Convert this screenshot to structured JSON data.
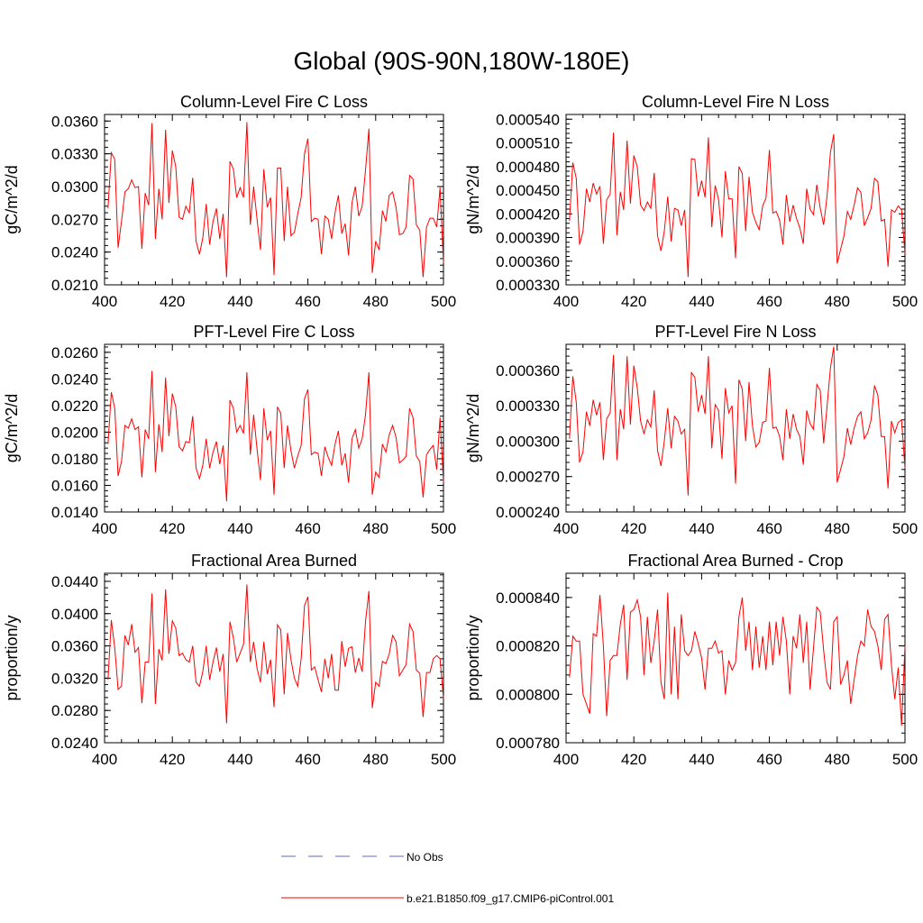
{
  "page": {
    "title": "Global (90S-90N,180W-180E)"
  },
  "legend": {
    "entries": [
      {
        "label": "No Obs",
        "style": "dashed",
        "color": "#5b6bc0"
      },
      {
        "label": "b.e21.B1850.f09_g17.CMIP6-piControl.001",
        "style": "solid",
        "color": "#ff0000"
      }
    ]
  },
  "chart_data": [
    {
      "type": "line",
      "title": "Column-Level Fire C Loss",
      "ylabel": "gC/m^2/d",
      "xlim": [
        400,
        500
      ],
      "ylim": [
        0.021,
        0.0366
      ],
      "xticks": [
        400,
        420,
        440,
        460,
        480,
        500
      ],
      "xtick_labels": [
        "400",
        "420",
        "440",
        "460",
        "480",
        "500"
      ],
      "yticks": [
        0.021,
        0.024,
        0.027,
        0.03,
        0.033,
        0.036
      ],
      "ytick_labels": [
        "0.0210",
        "0.0240",
        "0.0270",
        "0.0300",
        "0.0330",
        "0.0360"
      ],
      "series": [
        {
          "color": "#ff0000",
          "x_start": 401,
          "values": [
            0.028,
            0.0331,
            0.0325,
            0.0244,
            0.0268,
            0.0295,
            0.0298,
            0.0306,
            0.0299,
            0.03,
            0.0243,
            0.0294,
            0.0283,
            0.0358,
            0.0252,
            0.0298,
            0.027,
            0.0352,
            0.0285,
            0.0333,
            0.0318,
            0.0272,
            0.027,
            0.0282,
            0.0276,
            0.0308,
            0.025,
            0.0238,
            0.0253,
            0.0284,
            0.0247,
            0.0268,
            0.028,
            0.0252,
            0.0275,
            0.0217,
            0.0323,
            0.0316,
            0.029,
            0.0299,
            0.029,
            0.0359,
            0.0265,
            0.03,
            0.027,
            0.0242,
            0.0316,
            0.0281,
            0.029,
            0.0219,
            0.0317,
            0.0317,
            0.025,
            0.03,
            0.0255,
            0.0258,
            0.0275,
            0.029,
            0.033,
            0.0344,
            0.0268,
            0.0271,
            0.027,
            0.0238,
            0.0273,
            0.027,
            0.0252,
            0.0276,
            0.0292,
            0.0257,
            0.0266,
            0.0237,
            0.0285,
            0.03,
            0.0273,
            0.0282,
            0.0315,
            0.0353,
            0.0221,
            0.025,
            0.0242,
            0.0278,
            0.0268,
            0.0292,
            0.0295,
            0.0281,
            0.0256,
            0.0257,
            0.0263,
            0.031,
            0.0307,
            0.0265,
            0.026,
            0.0217,
            0.0263,
            0.0271,
            0.0271,
            0.0263,
            0.0299,
            0.023
          ]
        }
      ]
    },
    {
      "type": "line",
      "title": "Column-Level Fire N Loss",
      "ylabel": "gN/m^2/d",
      "xlim": [
        400,
        500
      ],
      "ylim": [
        0.00033,
        0.000546
      ],
      "xticks": [
        400,
        420,
        440,
        460,
        480,
        500
      ],
      "xtick_labels": [
        "400",
        "420",
        "440",
        "460",
        "480",
        "500"
      ],
      "yticks": [
        0.00033,
        0.00036,
        0.00039,
        0.00042,
        0.00045,
        0.00048,
        0.00051,
        0.00054
      ],
      "ytick_labels": [
        "0.000330",
        "0.000360",
        "0.000390",
        "0.000420",
        "0.000450",
        "0.000480",
        "0.000510",
        "0.000540"
      ],
      "series": [
        {
          "color": "#ff0000",
          "x_start": 401,
          "values": [
            0.000411,
            0.000485,
            0.000465,
            0.000381,
            0.000398,
            0.000452,
            0.000435,
            0.000459,
            0.000445,
            0.000455,
            0.000382,
            0.000438,
            0.000445,
            0.000523,
            0.000393,
            0.000448,
            0.000425,
            0.000513,
            0.000433,
            0.000494,
            0.00048,
            0.000431,
            0.000424,
            0.000435,
            0.000427,
            0.000472,
            0.000392,
            0.000373,
            0.000398,
            0.000442,
            0.000385,
            0.000427,
            0.000425,
            0.000405,
            0.000425,
            0.00034,
            0.00049,
            0.000489,
            0.000442,
            0.000462,
            0.000441,
            0.000517,
            0.000403,
            0.000456,
            0.000438,
            0.00039,
            0.000474,
            0.000439,
            0.000439,
            0.000364,
            0.00048,
            0.000471,
            0.000398,
            0.000467,
            0.000422,
            0.000409,
            0.0004,
            0.00043,
            0.00044,
            0.000501,
            0.000421,
            0.000423,
            0.000412,
            0.000381,
            0.000444,
            0.00041,
            0.000431,
            0.000414,
            0.000402,
            0.000382,
            0.000452,
            0.000426,
            0.000419,
            0.000457,
            0.000427,
            0.000406,
            0.000442,
            0.000498,
            0.000521,
            0.000357,
            0.000375,
            0.000392,
            0.000423,
            0.000413,
            0.000431,
            0.000453,
            0.000447,
            0.000405,
            0.000415,
            0.000427,
            0.000465,
            0.000461,
            0.000411,
            0.000413,
            0.000353,
            0.000425,
            0.000422,
            0.00043,
            0.000425,
            0.00037
          ]
        }
      ]
    },
    {
      "type": "line",
      "title": "PFT-Level Fire C Loss",
      "ylabel": "gC/m^2/d",
      "xlim": [
        400,
        500
      ],
      "ylim": [
        0.014,
        0.0266
      ],
      "xticks": [
        400,
        420,
        440,
        460,
        480,
        500
      ],
      "xtick_labels": [
        "400",
        "420",
        "440",
        "460",
        "480",
        "500"
      ],
      "yticks": [
        0.014,
        0.016,
        0.018,
        0.02,
        0.022,
        0.024,
        0.026
      ],
      "ytick_labels": [
        "0.0140",
        "0.0160",
        "0.0180",
        "0.0200",
        "0.0220",
        "0.0240",
        "0.0260"
      ],
      "series": [
        {
          "color": "#ff0000",
          "x_start": 401,
          "values": [
            0.0191,
            0.023,
            0.0218,
            0.0167,
            0.0178,
            0.0205,
            0.0203,
            0.021,
            0.0202,
            0.0204,
            0.0166,
            0.0202,
            0.0195,
            0.0246,
            0.017,
            0.0206,
            0.0185,
            0.0241,
            0.0197,
            0.0229,
            0.0219,
            0.0189,
            0.0186,
            0.0193,
            0.0192,
            0.0212,
            0.0173,
            0.0165,
            0.0175,
            0.0195,
            0.0173,
            0.0185,
            0.0193,
            0.0176,
            0.019,
            0.0148,
            0.0224,
            0.0218,
            0.02,
            0.0205,
            0.0199,
            0.0245,
            0.0183,
            0.0213,
            0.0187,
            0.0164,
            0.0218,
            0.0194,
            0.0201,
            0.0153,
            0.0219,
            0.0214,
            0.0173,
            0.0205,
            0.0186,
            0.0173,
            0.0182,
            0.019,
            0.0225,
            0.0232,
            0.0183,
            0.0185,
            0.0184,
            0.0167,
            0.0189,
            0.0181,
            0.0175,
            0.0191,
            0.0201,
            0.0175,
            0.0184,
            0.0162,
            0.0195,
            0.0202,
            0.0188,
            0.0195,
            0.0213,
            0.0245,
            0.0153,
            0.017,
            0.0166,
            0.0191,
            0.0185,
            0.0198,
            0.0205,
            0.0196,
            0.0177,
            0.0179,
            0.0182,
            0.0218,
            0.0211,
            0.0182,
            0.0178,
            0.0151,
            0.0183,
            0.0187,
            0.019,
            0.0172,
            0.0211,
            0.0162
          ]
        }
      ]
    },
    {
      "type": "line",
      "title": "PFT-Level Fire N Loss",
      "ylabel": "gN/m^2/d",
      "xlim": [
        400,
        500
      ],
      "ylim": [
        0.00024,
        0.000382
      ],
      "xticks": [
        400,
        420,
        440,
        460,
        480,
        500
      ],
      "xtick_labels": [
        "400",
        "420",
        "440",
        "460",
        "480",
        "500"
      ],
      "yticks": [
        0.00024,
        0.00027,
        0.0003,
        0.00033,
        0.00036
      ],
      "ytick_labels": [
        "0.000240",
        "0.000270",
        "0.000300",
        "0.000330",
        "0.000360"
      ],
      "series": [
        {
          "color": "#ff0000",
          "x_start": 401,
          "values": [
            0.000302,
            0.000355,
            0.000333,
            0.000282,
            0.000291,
            0.000325,
            0.000313,
            0.000335,
            0.000322,
            0.000333,
            0.000284,
            0.000319,
            0.000324,
            0.000373,
            0.000284,
            0.000327,
            0.00031,
            0.000372,
            0.000314,
            0.000364,
            0.000345,
            0.000317,
            0.000306,
            0.000318,
            0.000312,
            0.000343,
            0.000292,
            0.000279,
            0.0003,
            0.000328,
            0.000294,
            0.000321,
            0.000317,
            0.000306,
            0.00031,
            0.000254,
            0.000358,
            0.000354,
            0.000325,
            0.000339,
            0.000323,
            0.000372,
            0.000294,
            0.000331,
            0.000326,
            0.000285,
            0.000345,
            0.000324,
            0.00033,
            0.000264,
            0.000352,
            0.000344,
            0.0003,
            0.00035,
            0.000313,
            0.000295,
            0.000299,
            0.000316,
            0.000317,
            0.000362,
            0.000311,
            0.000312,
            0.000304,
            0.000284,
            0.000327,
            0.000302,
            0.000323,
            0.00031,
            0.000304,
            0.00028,
            0.000326,
            0.000315,
            0.00031,
            0.000348,
            0.000343,
            0.000298,
            0.000329,
            0.000362,
            0.00038,
            0.000265,
            0.000276,
            0.000287,
            0.000311,
            0.000297,
            0.000311,
            0.000321,
            0.000325,
            0.000302,
            0.000307,
            0.000318,
            0.000347,
            0.000339,
            0.000304,
            0.000304,
            0.00026,
            0.000317,
            0.000307,
            0.000316,
            0.000318,
            0.000277
          ]
        }
      ]
    },
    {
      "type": "line",
      "title": "Fractional Area Burned",
      "ylabel": "proportion/y",
      "xlim": [
        400,
        500
      ],
      "ylim": [
        0.024,
        0.045
      ],
      "xticks": [
        400,
        420,
        440,
        460,
        480,
        500
      ],
      "xtick_labels": [
        "400",
        "420",
        "440",
        "460",
        "480",
        "500"
      ],
      "yticks": [
        0.024,
        0.028,
        0.032,
        0.036,
        0.04,
        0.044
      ],
      "ytick_labels": [
        "0.0240",
        "0.0280",
        "0.0320",
        "0.0360",
        "0.0400",
        "0.0440"
      ],
      "series": [
        {
          "color": "#ff0000",
          "x_start": 401,
          "values": [
            0.0318,
            0.0392,
            0.0358,
            0.0306,
            0.031,
            0.0373,
            0.0361,
            0.0387,
            0.0352,
            0.0358,
            0.0289,
            0.034,
            0.034,
            0.0425,
            0.0288,
            0.0356,
            0.0342,
            0.043,
            0.035,
            0.0391,
            0.0382,
            0.0348,
            0.0351,
            0.0343,
            0.034,
            0.036,
            0.0315,
            0.031,
            0.0328,
            0.036,
            0.0318,
            0.034,
            0.0358,
            0.0328,
            0.035,
            0.0264,
            0.039,
            0.037,
            0.034,
            0.0351,
            0.0362,
            0.0436,
            0.034,
            0.0365,
            0.0332,
            0.0315,
            0.0365,
            0.0325,
            0.0343,
            0.0284,
            0.0386,
            0.038,
            0.03,
            0.0376,
            0.0343,
            0.032,
            0.031,
            0.0344,
            0.041,
            0.0421,
            0.033,
            0.0334,
            0.0318,
            0.0303,
            0.0344,
            0.032,
            0.035,
            0.0305,
            0.0305,
            0.0366,
            0.0334,
            0.0357,
            0.0359,
            0.0327,
            0.0345,
            0.0328,
            0.039,
            0.0428,
            0.0283,
            0.0315,
            0.031,
            0.0341,
            0.0338,
            0.035,
            0.0373,
            0.0365,
            0.0323,
            0.033,
            0.0337,
            0.0387,
            0.0378,
            0.033,
            0.0326,
            0.0272,
            0.0327,
            0.0327,
            0.0344,
            0.0348,
            0.0344,
            0.0295
          ]
        }
      ]
    },
    {
      "type": "line",
      "title": "Fractional Area Burned - Crop",
      "ylabel": "proportion/y",
      "xlim": [
        400,
        500
      ],
      "ylim": [
        0.00078,
        0.00085
      ],
      "xticks": [
        400,
        420,
        440,
        460,
        480,
        500
      ],
      "xtick_labels": [
        "400",
        "420",
        "440",
        "460",
        "480",
        "500"
      ],
      "yticks": [
        0.00078,
        0.0008,
        0.00082,
        0.00084
      ],
      "ytick_labels": [
        "0.000780",
        "0.000800",
        "0.000820",
        "0.000840"
      ],
      "series": [
        {
          "color": "#ff0000",
          "x_start": 401,
          "values": [
            0.000807,
            0.000824,
            0.000822,
            0.000822,
            0.0008,
            0.000796,
            0.000792,
            0.000825,
            0.000824,
            0.000841,
            0.00082,
            0.000791,
            0.000814,
            0.000816,
            0.000816,
            0.000829,
            0.000837,
            0.000806,
            0.000834,
            0.000835,
            0.000839,
            0.000832,
            0.000808,
            0.000832,
            0.000813,
            0.000822,
            0.000835,
            0.000805,
            0.000798,
            0.000842,
            0.0008,
            0.000828,
            0.000798,
            0.000833,
            0.000818,
            0.000816,
            0.000818,
            0.000826,
            0.000821,
            0.000815,
            0.000802,
            0.000819,
            0.000819,
            0.000822,
            0.000817,
            0.000818,
            0.0008,
            0.000814,
            0.00081,
            0.000813,
            0.000832,
            0.00084,
            0.000818,
            0.00083,
            0.00081,
            0.000828,
            0.000811,
            0.000824,
            0.00081,
            0.00083,
            0.000812,
            0.00083,
            0.000816,
            0.000832,
            0.000822,
            0.0008,
            0.000824,
            0.000819,
            0.000833,
            0.000813,
            0.00083,
            0.000802,
            0.000819,
            0.000836,
            0.000834,
            0.000818,
            0.000805,
            0.000802,
            0.00083,
            0.000832,
            0.000804,
            0.000808,
            0.000814,
            0.000796,
            0.000806,
            0.000816,
            0.000822,
            0.00082,
            0.000835,
            0.000828,
            0.000826,
            0.00082,
            0.00081,
            0.000831,
            0.000833,
            0.000812,
            0.000798,
            0.000811,
            0.000787,
            0.00082
          ]
        }
      ]
    }
  ]
}
